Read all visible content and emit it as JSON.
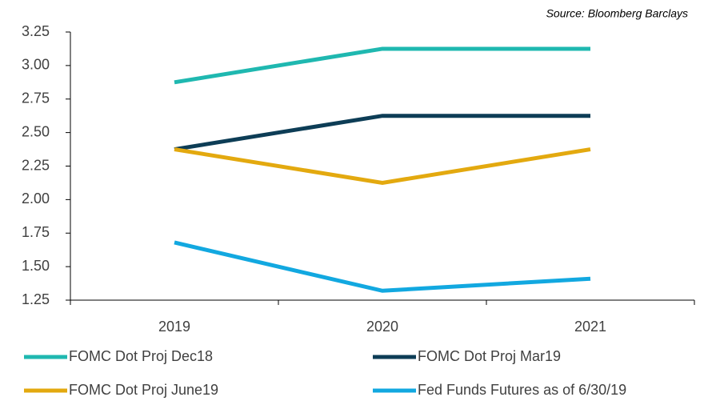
{
  "chart_data": {
    "type": "line",
    "source": "Source: Bloomberg Barclays",
    "categories": [
      "2019",
      "2020",
      "2021"
    ],
    "series": [
      {
        "name": "FOMC Dot Proj Dec18",
        "color": "#1fb8b0",
        "values": [
          2.875,
          3.125,
          3.125
        ]
      },
      {
        "name": "FOMC Dot Proj Mar19",
        "color": "#0d3d56",
        "values": [
          2.375,
          2.625,
          2.625
        ]
      },
      {
        "name": "FOMC Dot Proj June19",
        "color": "#e3a90f",
        "values": [
          2.375,
          2.125,
          2.375
        ]
      },
      {
        "name": "Fed Funds Futures as of 6/30/19",
        "color": "#12a8e0",
        "values": [
          1.68,
          1.32,
          1.41
        ]
      }
    ],
    "ylim": [
      1.25,
      3.25
    ],
    "yticks": [
      1.25,
      {
        "value": 1.5,
        "label": "1.50"
      },
      1.75,
      {
        "value": 2,
        "label": "2.00"
      },
      2.25,
      {
        "value": 2.5,
        "label": "2.50"
      },
      2.75,
      {
        "value": 3,
        "label": "3.00"
      },
      3.25
    ],
    "legend": "bottom"
  }
}
